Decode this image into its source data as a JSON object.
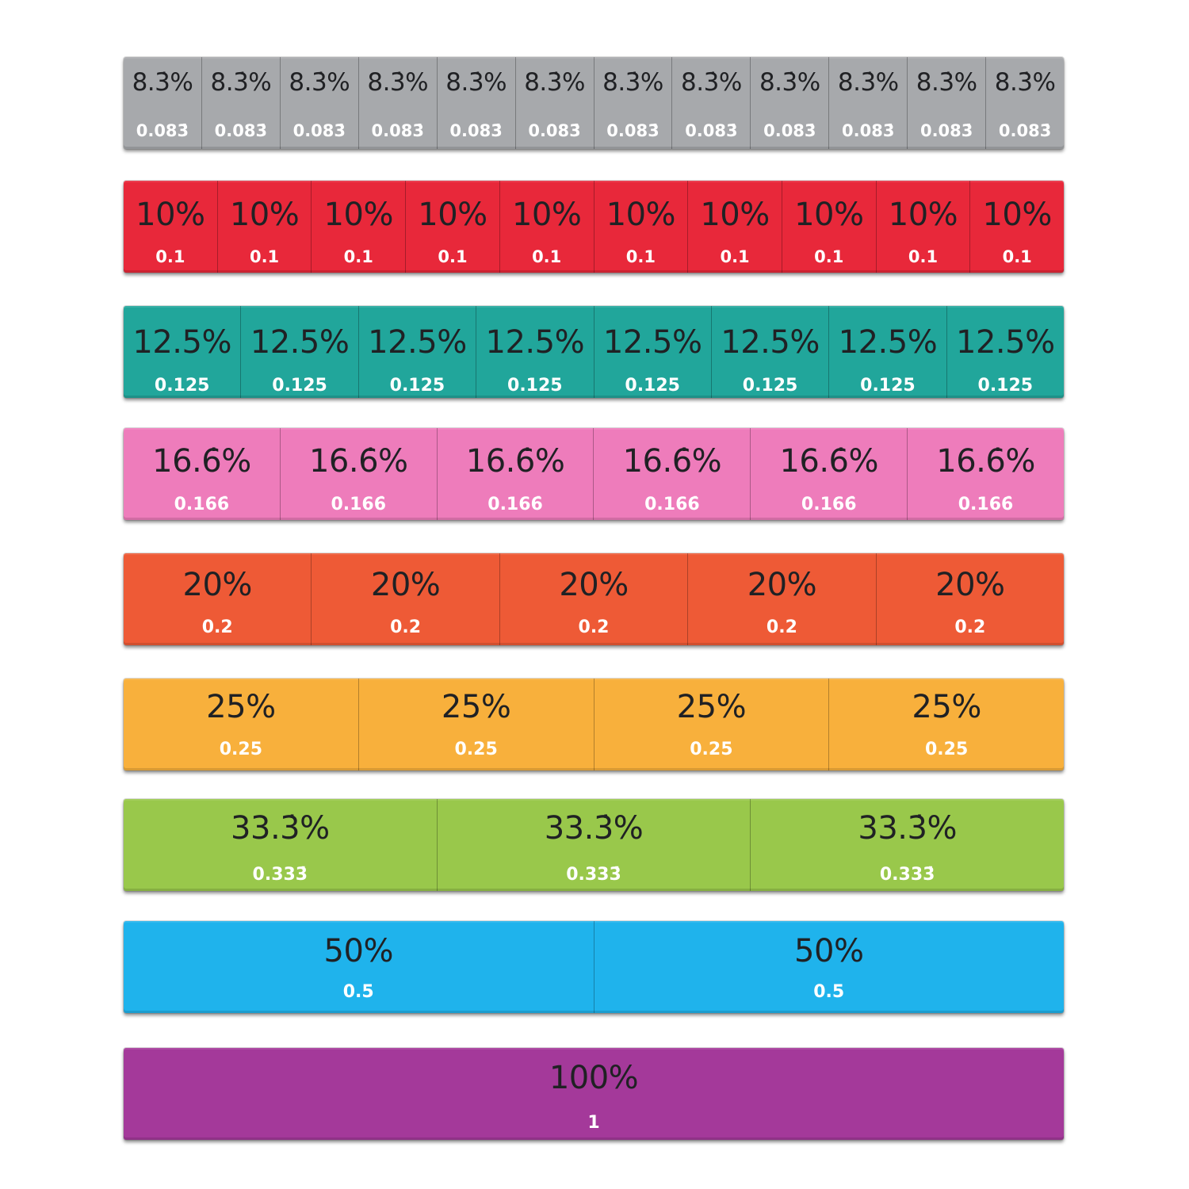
{
  "strips": [
    {
      "percent": "8.3̇%",
      "decimal": "0.083̇",
      "count": 12,
      "color": "#a7a9ac"
    },
    {
      "percent": "10%",
      "decimal": "0.1",
      "count": 10,
      "color": "#e8283a"
    },
    {
      "percent": "12.5%",
      "decimal": "0.125",
      "count": 8,
      "color": "#21a69b"
    },
    {
      "percent": "16.6̇%",
      "decimal": "0.166̇",
      "count": 6,
      "color": "#ee7cbb"
    },
    {
      "percent": "20%",
      "decimal": "0.2",
      "count": 5,
      "color": "#ee5a36"
    },
    {
      "percent": "25%",
      "decimal": "0.25",
      "count": 4,
      "color": "#f8b03c"
    },
    {
      "percent": "33.3̇%",
      "decimal": "0.333̇",
      "count": 3,
      "color": "#99c84b"
    },
    {
      "percent": "50%",
      "decimal": "0.5",
      "count": 2,
      "color": "#1fb3ec"
    },
    {
      "percent": "100%",
      "decimal": "1",
      "count": 1,
      "color": "#a4399a"
    }
  ]
}
